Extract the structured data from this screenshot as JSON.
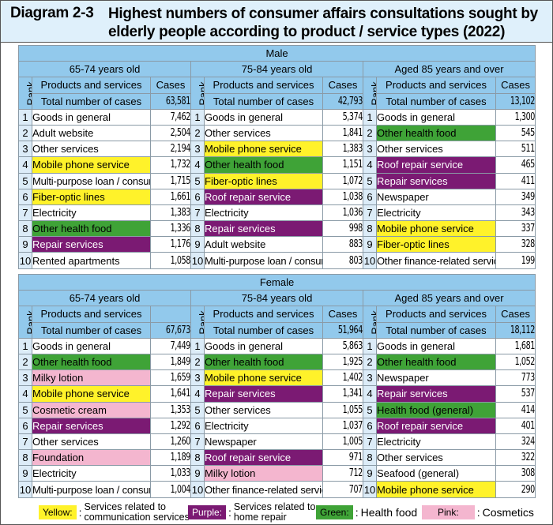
{
  "title": {
    "label": "Diagram 2-3",
    "text": "Highest numbers of consumer affairs consultations sought by elderly people according to product / service types (2022)"
  },
  "colors": {
    "yellow": "#fff22a",
    "purple": "#7b1a73",
    "green": "#3fa337",
    "pink": "#f4b6cf",
    "header_blue": "#92c9ec",
    "rank_blue": "#dcecf8",
    "title_bg": "#dff0fb"
  },
  "headers": {
    "rank": "Rank",
    "products": "Products and services",
    "cases": "Cases",
    "total": "Total number of cases"
  },
  "male": {
    "label": "Male",
    "groups": [
      {
        "age": "65-74 years old",
        "cases_header": "Cases",
        "total": "63,581",
        "rows": [
          {
            "rank": "1",
            "item": "Goods in general",
            "cases": "7,462",
            "color": "none"
          },
          {
            "rank": "2",
            "item": "Adult website",
            "cases": "2,504",
            "color": "none"
          },
          {
            "rank": "3",
            "item": "Other services",
            "cases": "2,194",
            "color": "none"
          },
          {
            "rank": "4",
            "item": "Mobile phone service",
            "cases": "1,732",
            "color": "yellow"
          },
          {
            "rank": "5",
            "item": "Multi-purpose loan / consumer loan",
            "cases": "1,715",
            "color": "none",
            "small": true
          },
          {
            "rank": "6",
            "item": "Fiber-optic lines",
            "cases": "1,661",
            "color": "yellow"
          },
          {
            "rank": "7",
            "item": "Electricity",
            "cases": "1,383",
            "color": "none"
          },
          {
            "rank": "8",
            "item": "Other health food",
            "cases": "1,336",
            "color": "green"
          },
          {
            "rank": "9",
            "item": "Repair services",
            "cases": "1,176",
            "color": "purple"
          },
          {
            "rank": "10",
            "item": "Rented apartments",
            "cases": "1,058",
            "color": "none"
          }
        ]
      },
      {
        "age": "75-84 years old",
        "cases_header": "Cases",
        "total": "42,793",
        "rows": [
          {
            "rank": "1",
            "item": "Goods in general",
            "cases": "5,374",
            "color": "none"
          },
          {
            "rank": "2",
            "item": "Other services",
            "cases": "1,841",
            "color": "none"
          },
          {
            "rank": "3",
            "item": "Mobile phone service",
            "cases": "1,383",
            "color": "yellow"
          },
          {
            "rank": "4",
            "item": "Other health food",
            "cases": "1,151",
            "color": "green"
          },
          {
            "rank": "5",
            "item": "Fiber-optic lines",
            "cases": "1,072",
            "color": "yellow"
          },
          {
            "rank": "6",
            "item": "Roof repair service",
            "cases": "1,038",
            "color": "purple"
          },
          {
            "rank": "7",
            "item": "Electricity",
            "cases": "1,036",
            "color": "none"
          },
          {
            "rank": "8",
            "item": "Repair services",
            "cases": "998",
            "color": "purple"
          },
          {
            "rank": "9",
            "item": "Adult website",
            "cases": "883",
            "color": "none"
          },
          {
            "rank": "10",
            "item": "Multi-purpose loan / consumer loan",
            "cases": "803",
            "color": "none",
            "small": true
          }
        ]
      },
      {
        "age": "Aged 85 years and over",
        "cases_header": "Cases",
        "total": "13,102",
        "rows": [
          {
            "rank": "1",
            "item": "Goods in general",
            "cases": "1,300",
            "color": "none"
          },
          {
            "rank": "2",
            "item": "Other health food",
            "cases": "545",
            "color": "green"
          },
          {
            "rank": "3",
            "item": "Other services",
            "cases": "511",
            "color": "none"
          },
          {
            "rank": "4",
            "item": "Roof repair service",
            "cases": "465",
            "color": "purple"
          },
          {
            "rank": "5",
            "item": "Repair services",
            "cases": "411",
            "color": "purple"
          },
          {
            "rank": "6",
            "item": "Newspaper",
            "cases": "349",
            "color": "none"
          },
          {
            "rank": "7",
            "item": "Electricity",
            "cases": "343",
            "color": "none"
          },
          {
            "rank": "8",
            "item": "Mobile phone service",
            "cases": "337",
            "color": "yellow"
          },
          {
            "rank": "9",
            "item": "Fiber-optic lines",
            "cases": "328",
            "color": "yellow"
          },
          {
            "rank": "10",
            "item": "Other finance-related services",
            "cases": "199",
            "color": "none",
            "small": true
          }
        ]
      }
    ]
  },
  "female": {
    "label": "Female",
    "groups": [
      {
        "age": "65-74 years old",
        "cases_header": "",
        "total": "67,673",
        "rows": [
          {
            "rank": "1",
            "item": "Goods in general",
            "cases": "7,449",
            "color": "none"
          },
          {
            "rank": "2",
            "item": "Other health food",
            "cases": "1,849",
            "color": "green"
          },
          {
            "rank": "3",
            "item": "Milky lotion",
            "cases": "1,659",
            "color": "pink"
          },
          {
            "rank": "4",
            "item": "Mobile phone service",
            "cases": "1,641",
            "color": "yellow"
          },
          {
            "rank": "5",
            "item": "Cosmetic cream",
            "cases": "1,353",
            "color": "pink"
          },
          {
            "rank": "6",
            "item": "Repair services",
            "cases": "1,292",
            "color": "purple"
          },
          {
            "rank": "7",
            "item": "Other services",
            "cases": "1,260",
            "color": "none"
          },
          {
            "rank": "8",
            "item": "Foundation",
            "cases": "1,189",
            "color": "pink"
          },
          {
            "rank": "9",
            "item": "Electricity",
            "cases": "1,033",
            "color": "none"
          },
          {
            "rank": "10",
            "item": "Multi-purpose loan / consumer loan",
            "cases": "1,004",
            "color": "none",
            "small": true
          }
        ]
      },
      {
        "age": "75-84 years old",
        "cases_header": "Cases",
        "total": "51,964",
        "rows": [
          {
            "rank": "1",
            "item": "Goods in general",
            "cases": "5,863",
            "color": "none"
          },
          {
            "rank": "2",
            "item": "Other health food",
            "cases": "1,925",
            "color": "green"
          },
          {
            "rank": "3",
            "item": "Mobile phone service",
            "cases": "1,402",
            "color": "yellow"
          },
          {
            "rank": "4",
            "item": "Repair services",
            "cases": "1,341",
            "color": "purple"
          },
          {
            "rank": "5",
            "item": "Other services",
            "cases": "1,055",
            "color": "none"
          },
          {
            "rank": "6",
            "item": "Electricity",
            "cases": "1,037",
            "color": "none"
          },
          {
            "rank": "7",
            "item": "Newspaper",
            "cases": "1,005",
            "color": "none"
          },
          {
            "rank": "8",
            "item": "Roof repair service",
            "cases": "971",
            "color": "purple"
          },
          {
            "rank": "9",
            "item": "Milky lotion",
            "cases": "712",
            "color": "pink"
          },
          {
            "rank": "10",
            "item": "Other finance-related services",
            "cases": "707",
            "color": "none",
            "small": true
          }
        ]
      },
      {
        "age": "Aged 85 years and over",
        "cases_header": "Cases",
        "total": "18,112",
        "rows": [
          {
            "rank": "1",
            "item": "Goods in general",
            "cases": "1,681",
            "color": "none"
          },
          {
            "rank": "2",
            "item": "Other health food",
            "cases": "1,052",
            "color": "green"
          },
          {
            "rank": "3",
            "item": "Newspaper",
            "cases": "773",
            "color": "none"
          },
          {
            "rank": "4",
            "item": "Repair services",
            "cases": "537",
            "color": "purple"
          },
          {
            "rank": "5",
            "item": "Health food (general)",
            "cases": "414",
            "color": "green"
          },
          {
            "rank": "6",
            "item": "Roof repair service",
            "cases": "401",
            "color": "purple"
          },
          {
            "rank": "7",
            "item": "Electricity",
            "cases": "324",
            "color": "none"
          },
          {
            "rank": "8",
            "item": "Other services",
            "cases": "322",
            "color": "none"
          },
          {
            "rank": "9",
            "item": "Seafood (general)",
            "cases": "308",
            "color": "none"
          },
          {
            "rank": "10",
            "item": "Mobile phone service",
            "cases": "290",
            "color": "yellow"
          }
        ]
      }
    ]
  },
  "legend": [
    {
      "swatch": "Yellow:",
      "color": "yellow",
      "colon": ":",
      "text_line1": "Services related to",
      "text_line2": "communication services"
    },
    {
      "swatch": "Purple:",
      "color": "purple",
      "colon": ":",
      "text_line1": "Services related to",
      "text_line2": "home repair"
    },
    {
      "swatch": "Green:",
      "color": "green",
      "colon": ":",
      "text_line1": "Health food",
      "text_line2": ""
    },
    {
      "swatch": "Pink:",
      "color": "pink",
      "colon": ":",
      "text_line1": "Cosmetics",
      "text_line2": ""
    }
  ]
}
